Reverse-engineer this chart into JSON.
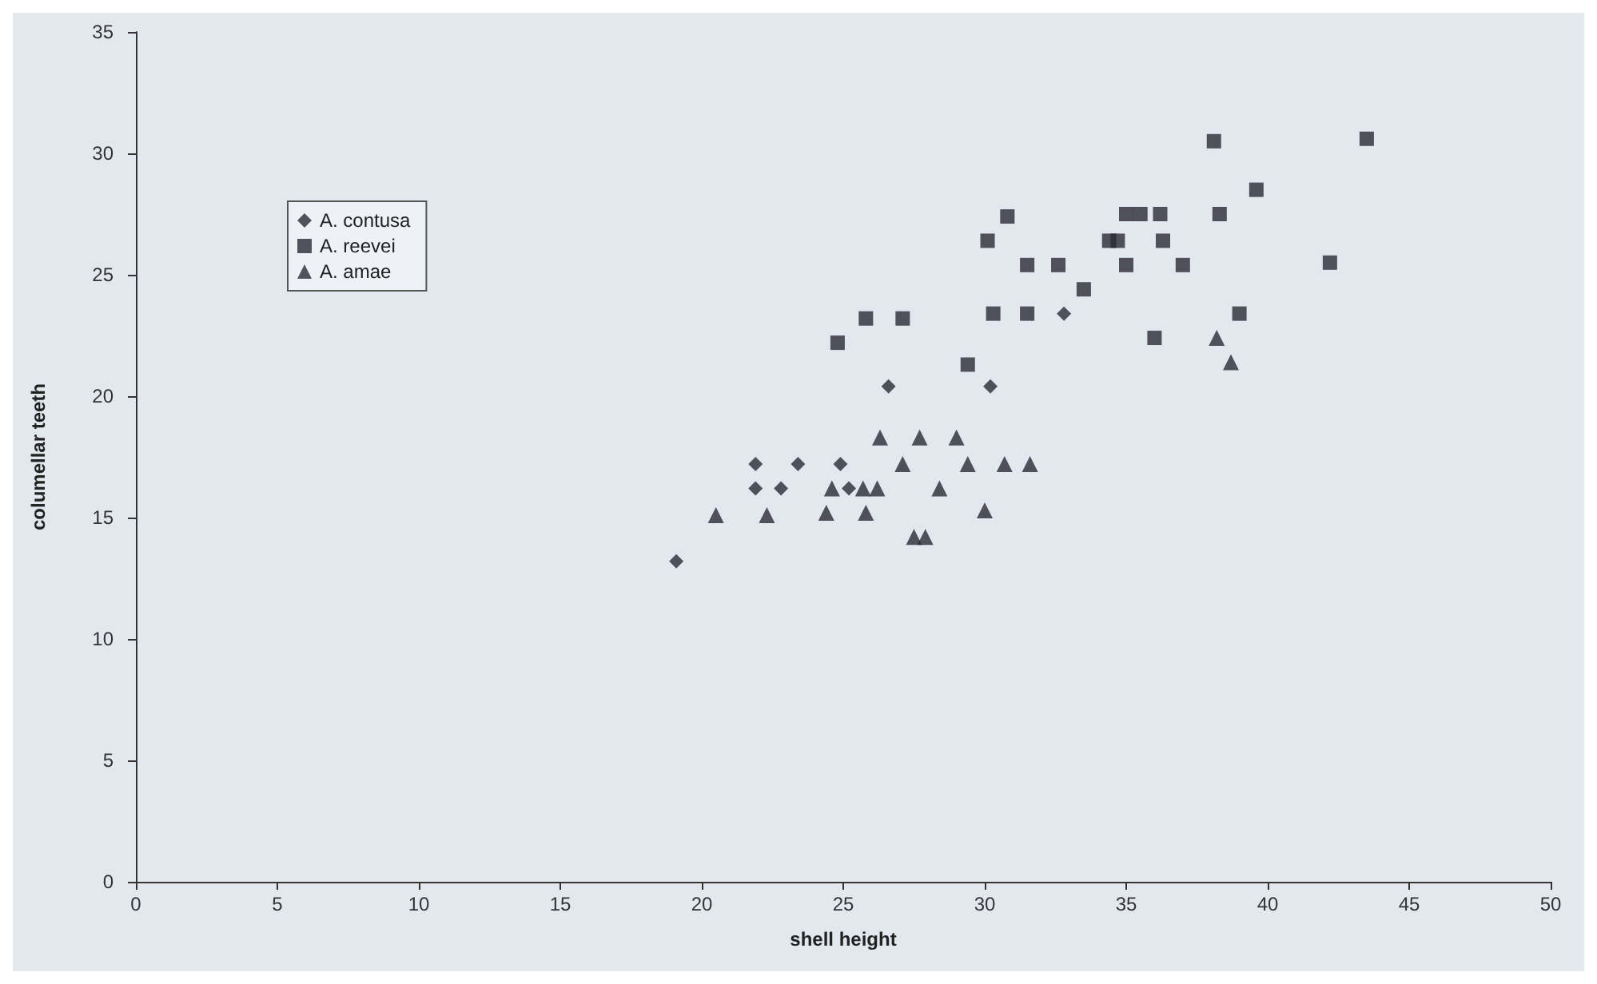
{
  "chart_data": {
    "type": "scatter",
    "xlabel": "shell height",
    "ylabel": "columellar teeth",
    "xlim": [
      0,
      50
    ],
    "xticks": [
      0,
      5,
      10,
      15,
      20,
      25,
      30,
      35,
      40,
      45,
      50
    ],
    "ylim": [
      0,
      35
    ],
    "yticks": [
      0,
      5,
      10,
      15,
      20,
      25,
      30,
      35
    ],
    "grid": false,
    "legend": "top left",
    "series": [
      {
        "name": "A. contusa",
        "color": "#2b2b36",
        "marker": "diamond",
        "x": [
          19.1,
          21.9,
          21.9,
          22.8,
          23.4,
          24.9,
          25.2,
          26.6,
          30.2,
          32.8
        ],
        "values": [
          13.2,
          17.2,
          16.2,
          16.2,
          17.2,
          17.2,
          16.2,
          20.4,
          20.4,
          23.4
        ]
      },
      {
        "name": "A. reevei",
        "color": "#2b2b36",
        "marker": "square",
        "x": [
          24.8,
          25.8,
          27.1,
          29.4,
          30.1,
          30.3,
          30.8,
          31.5,
          31.5,
          32.6,
          33.5,
          34.4,
          34.7,
          35.0,
          35.5,
          36.2,
          36.3,
          35.0,
          37.0,
          38.1,
          38.3,
          39.6,
          43.5,
          42.2,
          39.0,
          36.0
        ],
        "values": [
          22.2,
          23.2,
          23.2,
          21.3,
          26.4,
          23.4,
          27.4,
          25.4,
          23.4,
          25.4,
          24.4,
          26.4,
          26.4,
          27.5,
          27.5,
          27.5,
          26.4,
          25.4,
          25.4,
          30.5,
          27.5,
          28.5,
          30.6,
          25.5,
          23.4,
          22.4
        ]
      },
      {
        "name": "A. amae",
        "color": "#2b2b36",
        "marker": "triangle",
        "x": [
          20.5,
          22.3,
          24.4,
          24.6,
          25.7,
          25.8,
          26.2,
          26.3,
          27.1,
          27.5,
          27.7,
          27.9,
          28.4,
          29.0,
          29.4,
          30.0,
          30.7,
          31.6,
          38.2,
          38.7
        ],
        "values": [
          15.1,
          15.1,
          15.2,
          16.2,
          16.2,
          15.2,
          16.2,
          18.3,
          17.2,
          14.2,
          18.3,
          14.2,
          16.2,
          18.3,
          17.2,
          15.3,
          17.2,
          17.2,
          22.4,
          21.4
        ]
      }
    ]
  }
}
